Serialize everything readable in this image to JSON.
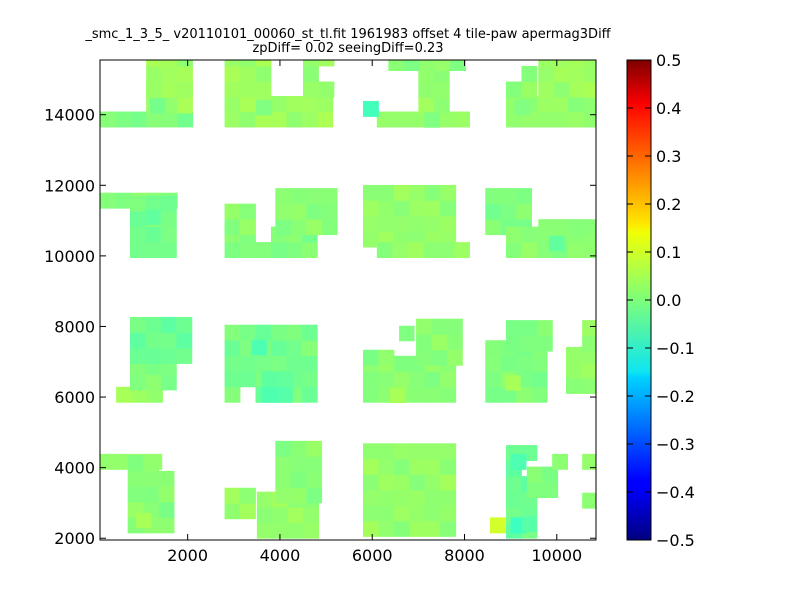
{
  "chart_data": {
    "type": "heatmap",
    "title": "_smc_1_3_5_ v20110101_00060_st_tl.fit 1961983 offset 4 tile-paw apermag3Diff",
    "subtitle": "zpDiff= 0.02 seeingDiff=0.23",
    "xlabel": "",
    "ylabel": "",
    "xlim": [
      100,
      10850
    ],
    "ylim": [
      1950,
      15550
    ],
    "xticks": [
      2000,
      4000,
      6000,
      8000,
      10000
    ],
    "yticks": [
      2000,
      4000,
      6000,
      8000,
      10000,
      12000,
      14000
    ],
    "xtick_labels": [
      "2000",
      "4000",
      "6000",
      "8000",
      "10000"
    ],
    "ytick_labels": [
      "2000",
      "4000",
      "6000",
      "8000",
      "10000",
      "12000",
      "14000"
    ],
    "cell_width": 335,
    "cell_height": 440,
    "colorscale": "jet",
    "colorbar": {
      "min": -0.5,
      "max": 0.5,
      "ticks": [
        0.5,
        0.4,
        0.3,
        0.2,
        0.1,
        0.0,
        -0.1,
        -0.2,
        -0.3,
        -0.4,
        -0.5
      ],
      "tick_labels": [
        "0.5",
        "0.4",
        "0.3",
        "0.2",
        "0.1",
        "0.0",
        "−0.1",
        "−0.2",
        "−0.3",
        "−0.4",
        "−0.5"
      ]
    },
    "grid": false,
    "blocks": [
      {
        "x0": 100,
        "x1": 1800,
        "y0": 3950,
        "y1": 4350,
        "v": 0.02
      },
      {
        "x0": 700,
        "x1": 1800,
        "y0": 2150,
        "y1": 3950,
        "v": 0.01
      },
      {
        "x0": 2800,
        "x1": 3500,
        "y0": 2550,
        "y1": 3250,
        "v": 0.02
      },
      {
        "x0": 3500,
        "x1": 4800,
        "y0": 2000,
        "y1": 3000,
        "v": 0.02
      },
      {
        "x0": 3900,
        "x1": 4800,
        "y0": 3000,
        "y1": 4350,
        "v": 0.01
      },
      {
        "x0": 5800,
        "x1": 7800,
        "y0": 2050,
        "y1": 4350,
        "v": 0.02
      },
      {
        "x0": 8550,
        "x1": 8900,
        "y0": 2150,
        "y1": 2500,
        "v": 0.07
      },
      {
        "x0": 8900,
        "x1": 9600,
        "y0": 2000,
        "y1": 4350,
        "v": -0.02
      },
      {
        "x0": 9000,
        "x1": 9350,
        "y0": 2150,
        "y1": 2550,
        "v": -0.06
      },
      {
        "x0": 9000,
        "x1": 9400,
        "y0": 3950,
        "y1": 4350,
        "v": -0.05
      },
      {
        "x0": 9350,
        "x1": 10000,
        "y0": 3150,
        "y1": 3650,
        "v": 0.0
      },
      {
        "x0": 9900,
        "x1": 10200,
        "y0": 3950,
        "y1": 4350,
        "v": 0.01
      },
      {
        "x0": 10550,
        "x1": 10850,
        "y0": 2850,
        "y1": 3250,
        "v": 0.02
      },
      {
        "x0": 10550,
        "x1": 10850,
        "y0": 3950,
        "y1": 4350,
        "v": 0.02
      },
      {
        "x0": 450,
        "x1": 1400,
        "y0": 5850,
        "y1": 6200,
        "v": 0.03
      },
      {
        "x0": 750,
        "x1": 1600,
        "y0": 6200,
        "y1": 6950,
        "v": 0.0
      },
      {
        "x0": 750,
        "x1": 2100,
        "y0": 6950,
        "y1": 7900,
        "v": -0.02
      },
      {
        "x0": 2800,
        "x1": 4800,
        "y0": 5850,
        "y1": 7900,
        "v": -0.01
      },
      {
        "x0": 3600,
        "x1": 4200,
        "y0": 5850,
        "y1": 6300,
        "v": -0.04
      },
      {
        "x0": 5800,
        "x1": 7800,
        "y0": 5850,
        "y1": 6900,
        "v": 0.01
      },
      {
        "x0": 5800,
        "x1": 6500,
        "y0": 6900,
        "y1": 7300,
        "v": 0.01
      },
      {
        "x0": 6950,
        "x1": 7800,
        "y0": 6900,
        "y1": 7900,
        "v": 0.01
      },
      {
        "x0": 8450,
        "x1": 9750,
        "y0": 5850,
        "y1": 7300,
        "v": 0.0
      },
      {
        "x0": 8900,
        "x1": 9750,
        "y0": 7300,
        "y1": 7850,
        "v": 0.0
      },
      {
        "x0": 10200,
        "x1": 10850,
        "y0": 6100,
        "y1": 7300,
        "v": 0.02
      },
      {
        "x0": 10550,
        "x1": 10850,
        "y0": 7300,
        "y1": 7900,
        "v": 0.02
      },
      {
        "x0": 100,
        "x1": 1800,
        "y0": 11350,
        "y1": 11750,
        "v": 0.01
      },
      {
        "x0": 750,
        "x1": 1800,
        "y0": 9950,
        "y1": 11350,
        "v": -0.01
      },
      {
        "x0": 2800,
        "x1": 4800,
        "y0": 9950,
        "y1": 10600,
        "v": 0.0
      },
      {
        "x0": 2800,
        "x1": 3500,
        "y0": 10600,
        "y1": 11350,
        "v": 0.01
      },
      {
        "x0": 3900,
        "x1": 5200,
        "y0": 10600,
        "y1": 11750,
        "v": 0.01
      },
      {
        "x0": 5800,
        "x1": 7800,
        "y0": 10250,
        "y1": 11750,
        "v": 0.02
      },
      {
        "x0": 6100,
        "x1": 8150,
        "y0": 9950,
        "y1": 10350,
        "v": 0.02
      },
      {
        "x0": 8450,
        "x1": 9600,
        "y0": 10600,
        "y1": 11750,
        "v": 0.0
      },
      {
        "x0": 8900,
        "x1": 10850,
        "y0": 9950,
        "y1": 10600,
        "v": 0.01
      },
      {
        "x0": 9600,
        "x1": 10850,
        "y0": 10600,
        "y1": 10950,
        "v": 0.01
      },
      {
        "x0": 100,
        "x1": 2100,
        "y0": 13650,
        "y1": 14050,
        "v": 0.0
      },
      {
        "x0": 1100,
        "x1": 2100,
        "y0": 14050,
        "y1": 14500,
        "v": 0.03
      },
      {
        "x0": 1100,
        "x1": 2100,
        "y0": 14500,
        "y1": 15550,
        "v": 0.03
      },
      {
        "x0": 2800,
        "x1": 5200,
        "y0": 13650,
        "y1": 14500,
        "v": 0.03
      },
      {
        "x0": 2800,
        "x1": 3900,
        "y0": 14500,
        "y1": 15550,
        "v": 0.03
      },
      {
        "x0": 4500,
        "x1": 5200,
        "y0": 14500,
        "y1": 15550,
        "v": 0.02
      },
      {
        "x0": 6100,
        "x1": 8150,
        "y0": 13650,
        "y1": 14050,
        "v": 0.02
      },
      {
        "x0": 7000,
        "x1": 7800,
        "y0": 14050,
        "y1": 15250,
        "v": 0.02
      },
      {
        "x0": 6350,
        "x1": 8150,
        "y0": 15250,
        "y1": 15550,
        "v": 0.01
      },
      {
        "x0": 5800,
        "x1": 6150,
        "y0": 13950,
        "y1": 14350,
        "v": -0.06
      },
      {
        "x0": 8900,
        "x1": 10850,
        "y0": 13650,
        "y1": 14500,
        "v": 0.02
      },
      {
        "x0": 9600,
        "x1": 10850,
        "y0": 14500,
        "y1": 15550,
        "v": 0.03
      },
      {
        "x0": 8900,
        "x1": 9600,
        "y0": 14500,
        "y1": 15000,
        "v": 0.01
      }
    ],
    "holes": [
      [
        1450,
        2100,
        3950,
        4350
      ],
      [
        100,
        700,
        3600,
        3950
      ],
      [
        1800,
        2100,
        2150,
        4350
      ],
      [
        1700,
        2100,
        6000,
        6950
      ],
      [
        100,
        450,
        5850,
        6950
      ],
      [
        3200,
        3500,
        5850,
        6100
      ],
      [
        5200,
        5800,
        5850,
        7900
      ],
      [
        6500,
        6950,
        7300,
        7900
      ],
      [
        7800,
        8450,
        5850,
        7900
      ],
      [
        9350,
        9750,
        7650,
        7900
      ],
      [
        9350,
        9600,
        3950,
        4350
      ],
      [
        9600,
        10550,
        2000,
        2850
      ],
      [
        10000,
        10850,
        3250,
        3650
      ],
      [
        2100,
        2800,
        9950,
        10400
      ],
      [
        3500,
        3900,
        10600,
        10950
      ],
      [
        1800,
        2100,
        9950,
        10350
      ],
      [
        5200,
        5800,
        9950,
        11750
      ],
      [
        5900,
        6150,
        9950,
        10350
      ],
      [
        7800,
        8450,
        10950,
        11750
      ],
      [
        9600,
        10200,
        11000,
        11750
      ],
      [
        10550,
        10850,
        11000,
        11750
      ],
      [
        1450,
        1800,
        15250,
        15550
      ],
      [
        4800,
        5200,
        15000,
        15550
      ],
      [
        3900,
        4500,
        15150,
        15550
      ],
      [
        6100,
        6700,
        14050,
        15250
      ],
      [
        6700,
        7000,
        14050,
        14350
      ],
      [
        7800,
        8150,
        14050,
        15250
      ],
      [
        8150,
        8900,
        13650,
        15550
      ],
      [
        8900,
        9350,
        15000,
        15550
      ]
    ],
    "spots": [
      [
        1350,
        14250,
        -0.01
      ],
      [
        3650,
        14200,
        0.0
      ],
      [
        7300,
        13850,
        0.0
      ],
      [
        9250,
        14200,
        0.0
      ],
      [
        10000,
        10350,
        -0.03
      ],
      [
        1250,
        11100,
        -0.03
      ],
      [
        9050,
        6400,
        0.04
      ],
      [
        9400,
        2400,
        -0.04
      ],
      [
        1050,
        2500,
        0.04
      ],
      [
        6550,
        6050,
        0.04
      ],
      [
        3550,
        7400,
        -0.05
      ],
      [
        6750,
        7800,
        0.0
      ]
    ]
  }
}
